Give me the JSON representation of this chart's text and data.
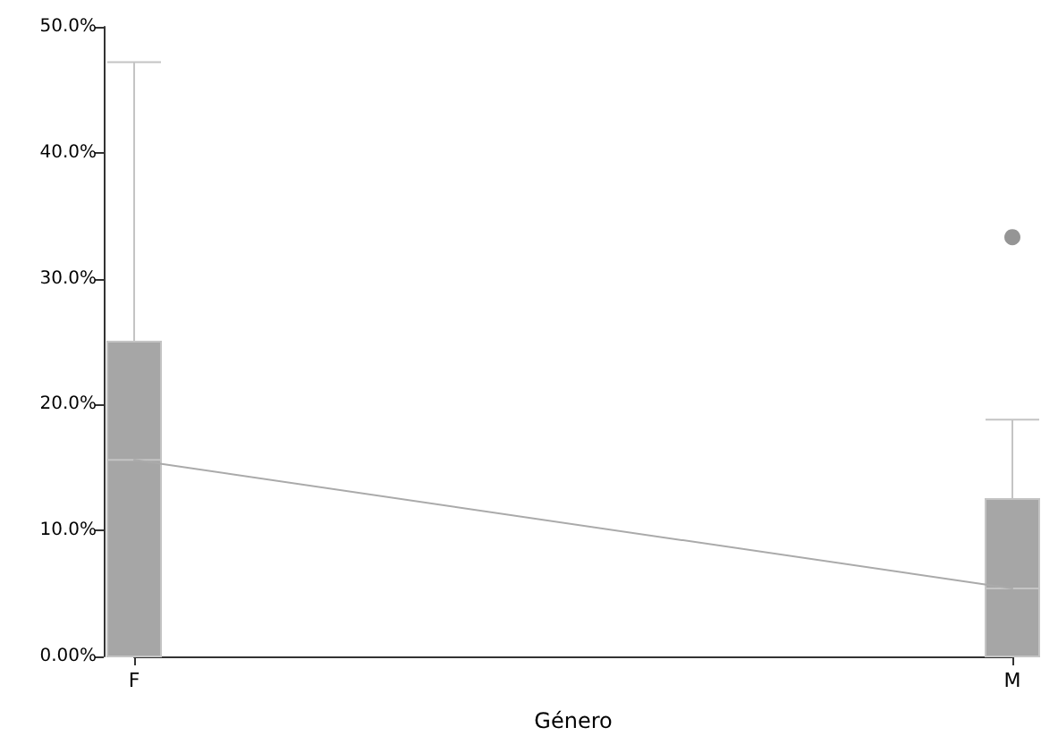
{
  "chart_data": {
    "type": "box",
    "xlabel": "Género",
    "categories": [
      "F",
      "M"
    ],
    "ylim": [
      0,
      50
    ],
    "yticks": [
      {
        "value": 0,
        "label": "0.00%"
      },
      {
        "value": 10,
        "label": "10.0%"
      },
      {
        "value": 20,
        "label": "20.0%"
      },
      {
        "value": 30,
        "label": "30.0%"
      },
      {
        "value": 40,
        "label": "40.0%"
      },
      {
        "value": 50,
        "label": "50.0%"
      }
    ],
    "grid": false,
    "series": [
      {
        "type": "line",
        "color": "#aaaaaa",
        "values": [
          15.6,
          5.4
        ]
      },
      {
        "type": "box",
        "color": "#a6a6a6",
        "boxes": [
          {
            "low": 0,
            "q1": 0,
            "median": 15.6,
            "q3": 25,
            "high": 47.2
          },
          {
            "low": 0,
            "q1": 0,
            "median": 5.4,
            "q3": 12.5,
            "high": 18.8,
            "outliers": [
              33.3
            ]
          }
        ]
      }
    ]
  }
}
